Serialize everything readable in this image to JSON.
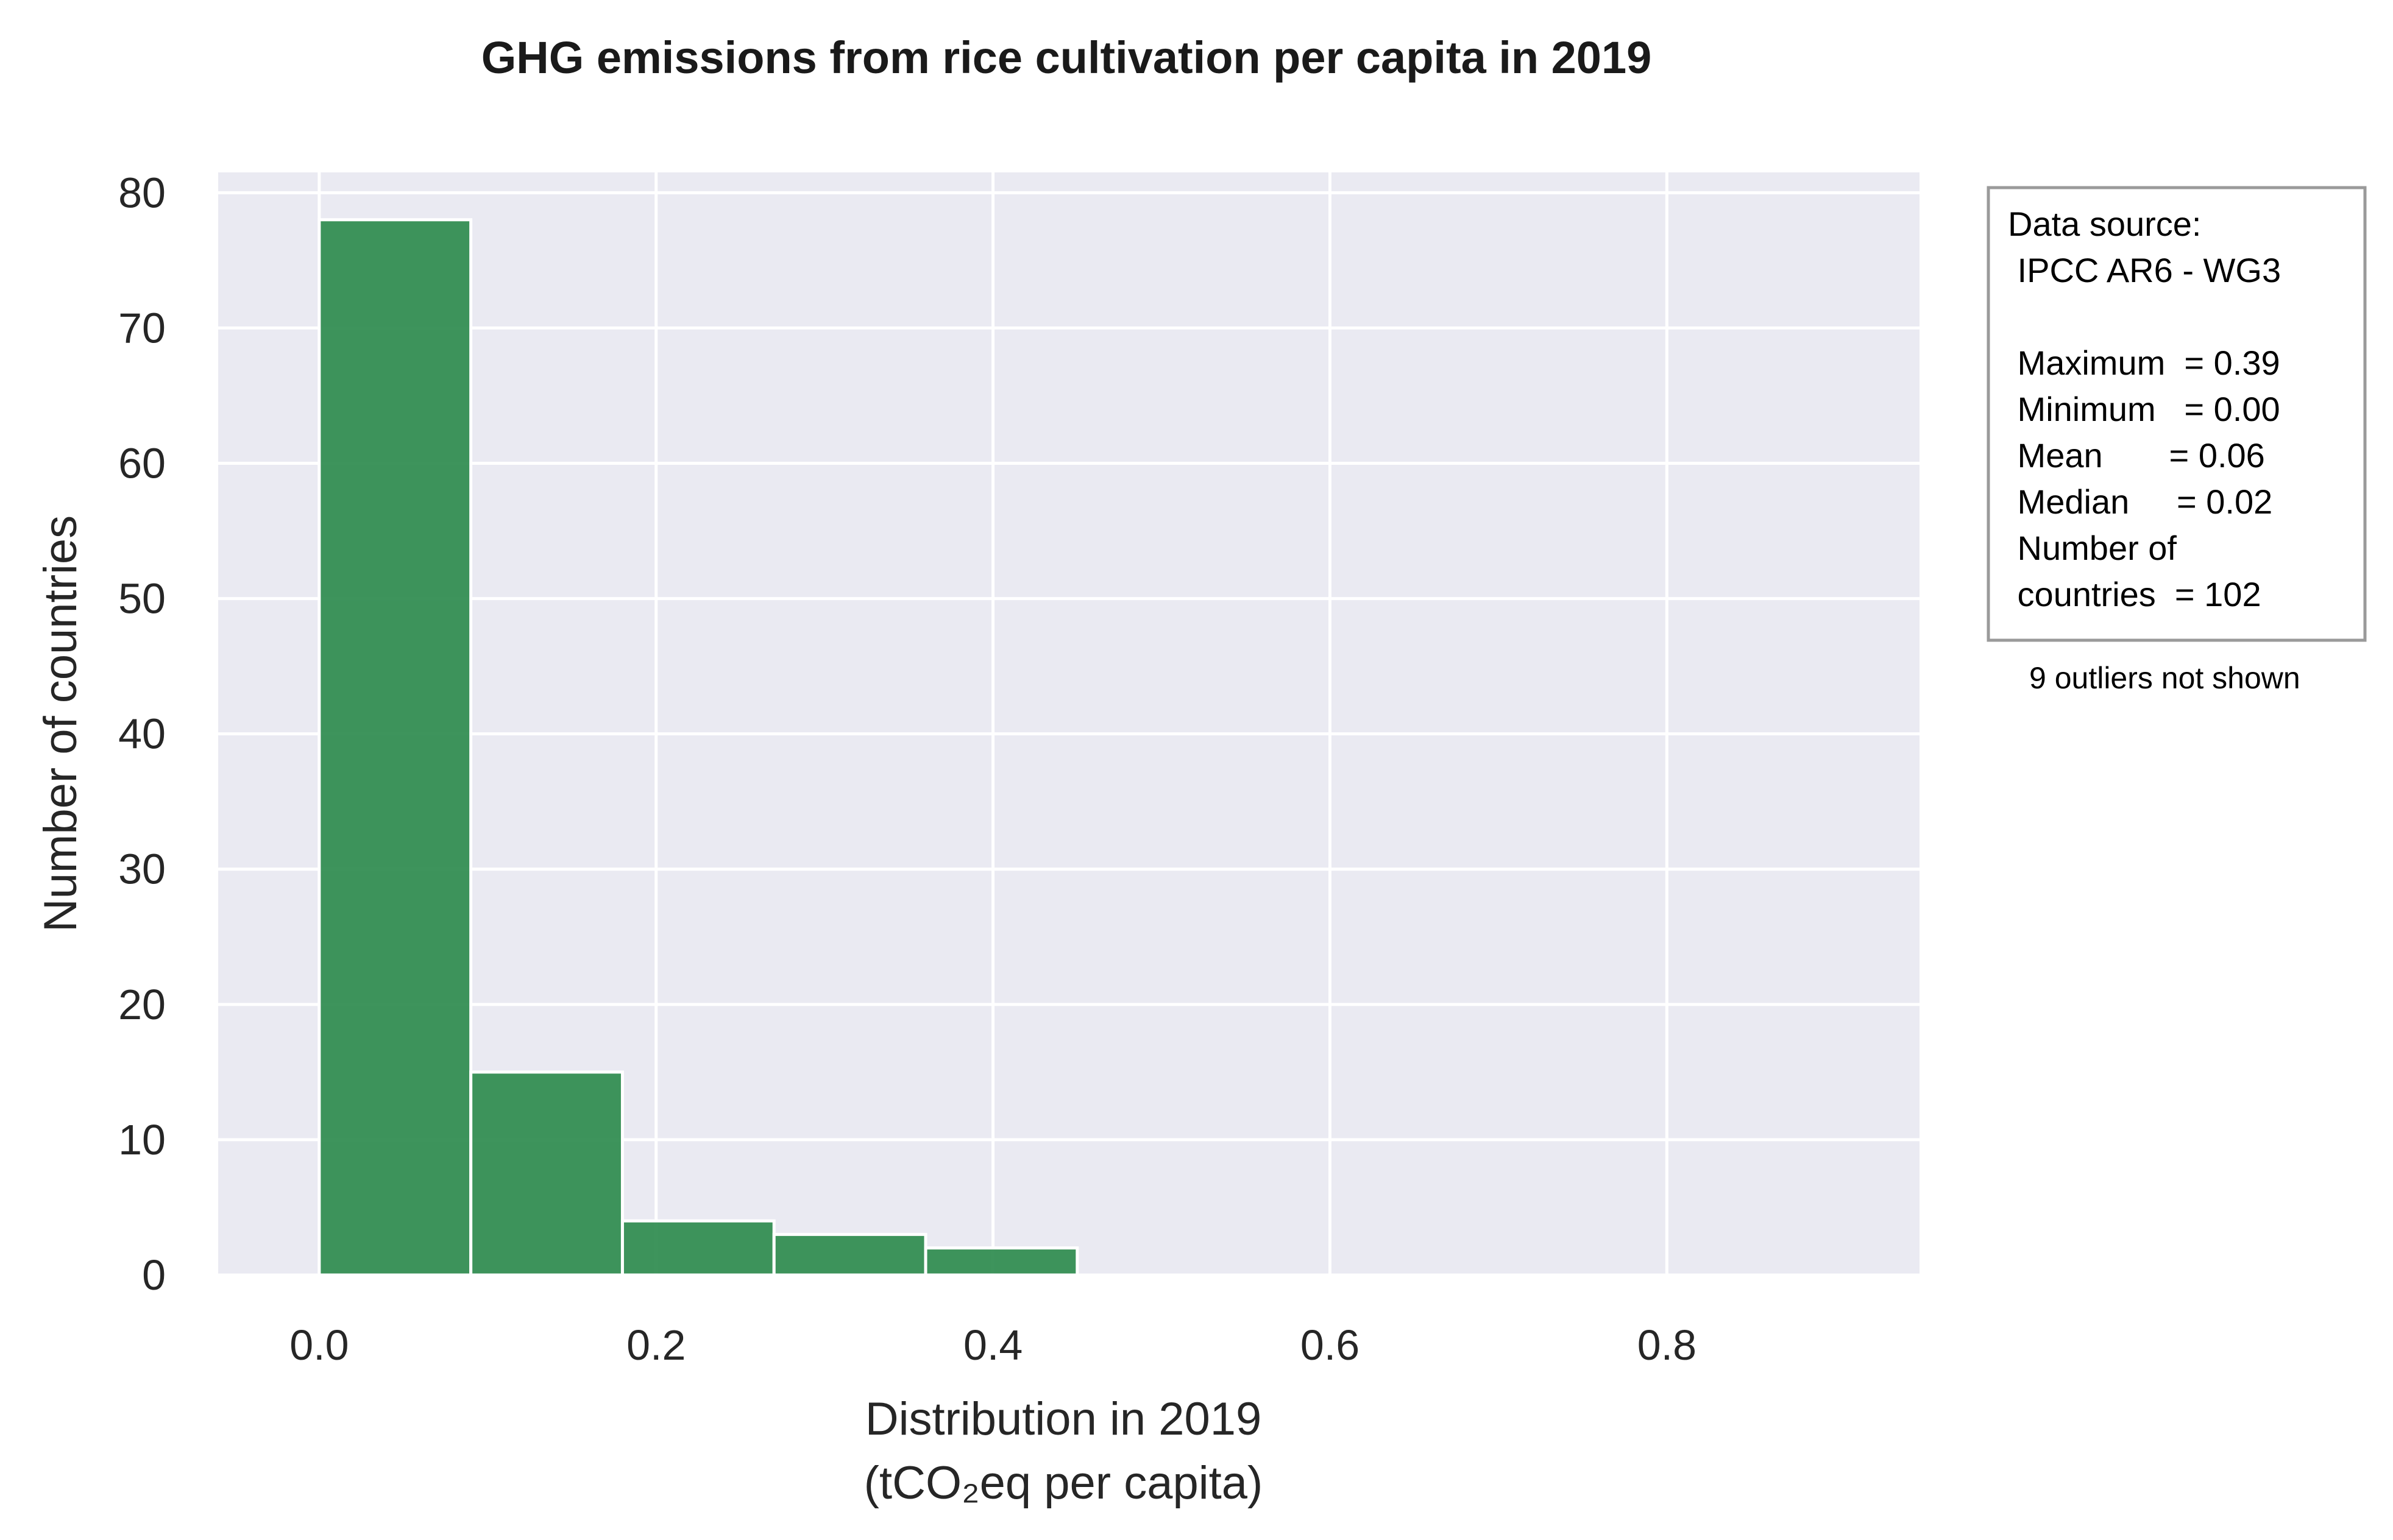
{
  "chart_data": {
    "type": "bar",
    "title": "GHG emissions from rice cultivation per capita in 2019",
    "xlabel": "Distribution in 2019",
    "xlabel_unit": "(tCO₂eq per capita)",
    "ylabel": "Number of countries",
    "xlim": [
      -0.06,
      0.95
    ],
    "ylim": [
      0,
      81.5
    ],
    "xticks": [
      "0.0",
      "0.2",
      "0.4",
      "0.6",
      "0.8"
    ],
    "yticks": [
      "0",
      "10",
      "20",
      "30",
      "40",
      "50",
      "60",
      "70",
      "80"
    ],
    "bin_edges": [
      0.0,
      0.09,
      0.18,
      0.27,
      0.36,
      0.45
    ],
    "values": [
      78,
      15,
      4,
      3,
      2
    ],
    "grid": true,
    "background": "#eaeaf2",
    "bar_color": "#2e8b4e",
    "info_box": {
      "lines": [
        "Data source:",
        " IPCC AR6 - WG3",
        "",
        " Maximum  = 0.39",
        " Minimum   = 0.00",
        " Mean       = 0.06",
        " Median     = 0.02",
        " Number of",
        " countries  = 102"
      ],
      "note": "9 outliers not shown"
    }
  }
}
